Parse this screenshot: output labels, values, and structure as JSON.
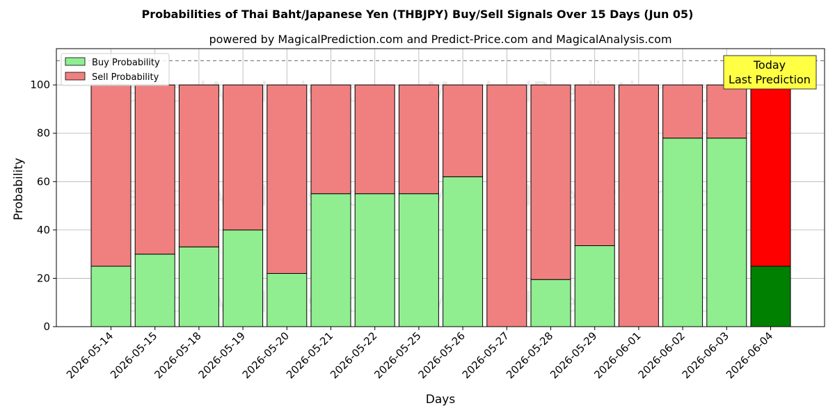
{
  "chart_data": {
    "type": "bar",
    "stacked": true,
    "title": "Probabilities of Thai Baht/Japanese Yen (THBJPY) Buy/Sell Signals Over 15 Days (Jun 05)",
    "subtitle": "powered by MagicalPrediction.com and Predict-Price.com and MagicalAnalysis.com",
    "xlabel": "Days",
    "ylabel": "Probability",
    "ylim": [
      0,
      115
    ],
    "yticks": [
      0,
      20,
      40,
      60,
      80,
      100
    ],
    "grid": true,
    "reference_line": 110,
    "legend_position": "upper-left",
    "categories": [
      "2026-05-14",
      "2026-05-15",
      "2026-05-18",
      "2026-05-19",
      "2026-05-20",
      "2026-05-21",
      "2026-05-22",
      "2026-05-25",
      "2026-05-26",
      "2026-05-27",
      "2026-05-28",
      "2026-05-29",
      "2026-06-01",
      "2026-06-02",
      "2026-06-03",
      "2026-06-04"
    ],
    "series": [
      {
        "name": "Buy Probability",
        "color": "#90ee90",
        "highlight_color": "#008000",
        "values": [
          25,
          30,
          33,
          40,
          22,
          55,
          55,
          55,
          62,
          0,
          19.5,
          33.5,
          0,
          78,
          78,
          25
        ]
      },
      {
        "name": "Sell Probability",
        "color": "#f08080",
        "highlight_color": "#ff0000",
        "values": [
          75,
          70,
          67,
          60,
          78,
          45,
          45,
          45,
          38,
          100,
          80.5,
          66.5,
          100,
          22,
          22,
          75
        ]
      }
    ],
    "highlight_index": 15,
    "annotation": {
      "lines": [
        "Today",
        "Last Prediction"
      ],
      "background": "#ffff44"
    },
    "watermark": "MagicalAnalysis.com    MagicalPrediction.com"
  }
}
